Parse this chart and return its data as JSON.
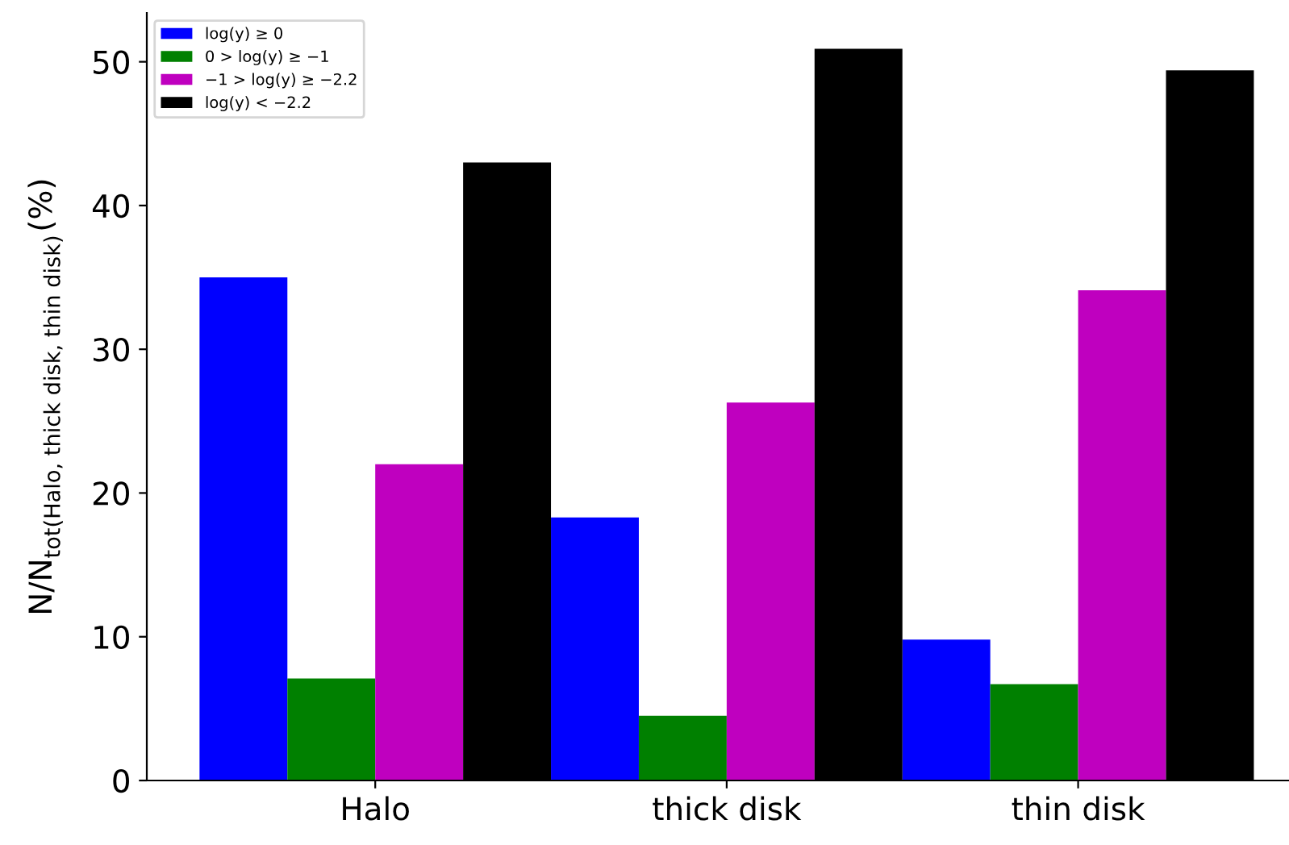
{
  "chart_data": {
    "type": "bar",
    "ylabel": "N/N$_{tot(Halo, thick disk, thin disk)}$(%)",
    "categories": [
      "Halo",
      "thick disk",
      "thin disk"
    ],
    "series": [
      {
        "name": "log(y) ≥ 0",
        "color": "#0000ff",
        "values": [
          35.0,
          18.3,
          9.8
        ]
      },
      {
        "name": "0 > log(y) ≥ −1",
        "color": "#008000",
        "values": [
          7.1,
          4.5,
          6.7
        ]
      },
      {
        "name": "−1 > log(y) ≥ −2.2",
        "color": "#bf00bf",
        "values": [
          22.0,
          26.3,
          34.1
        ]
      },
      {
        "name": "log(y) < −2.2",
        "color": "#000000",
        "values": [
          43.0,
          50.9,
          49.4
        ]
      }
    ],
    "ylim": [
      0,
      53.4
    ],
    "yticks": [
      0,
      10,
      20,
      30,
      40,
      50
    ],
    "grid": false,
    "legend": "top left"
  }
}
